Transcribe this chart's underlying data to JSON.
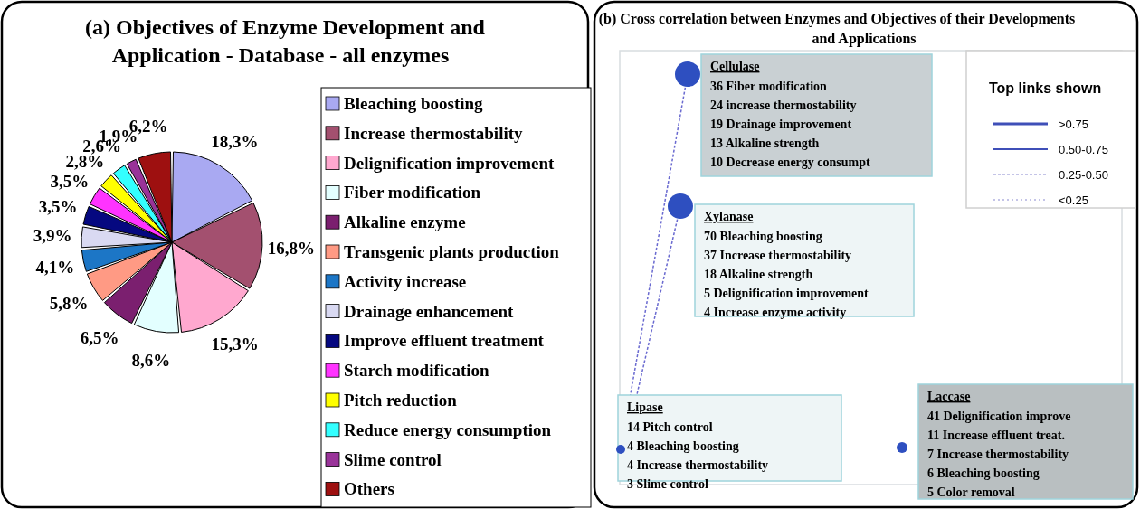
{
  "chart_data": [
    {
      "type": "pie",
      "title": "(a) Objectives of Enzyme Development and Application - Database - all enzymes",
      "categories": [
        "Bleaching boosting",
        "Increase thermostability",
        "Delignification improvement",
        "Fiber modification",
        "Alkaline enzyme",
        "Transgenic plants production",
        "Activity increase",
        "Drainage enhancement",
        "Improve effluent treatment",
        "Starch modification",
        "Pitch reduction",
        "Reduce energy consumption",
        "Slime control",
        "Others"
      ],
      "values": [
        18.3,
        16.8,
        15.3,
        8.6,
        6.5,
        5.8,
        4.1,
        3.9,
        3.5,
        3.5,
        2.8,
        2.6,
        1.9,
        6.2
      ],
      "value_labels": [
        "18,3%",
        "16,8%",
        "15,3%",
        "8,6%",
        "6,5%",
        "5,8%",
        "4,1%",
        "3,9%",
        "3,5%",
        "3,5%",
        "2,8%",
        "2,6%",
        "1,9%",
        "6,2%"
      ],
      "colors": [
        "#a9a9f2",
        "#a3506f",
        "#ffa8cf",
        "#e3ffff",
        "#7b1f6f",
        "#ff9a84",
        "#1c76c6",
        "#d9d9f2",
        "#050880",
        "#ff33ff",
        "#ffff00",
        "#33ffff",
        "#993399",
        "#9e1010"
      ],
      "legend": "right"
    },
    {
      "type": "other",
      "title": "(b) Cross correlation between Enzymes and Objectives of their Developments and Applications",
      "categories": [
        "Cellulase",
        "Xylanase",
        "Lipase",
        "Laccase"
      ],
      "annotations": [
        "36 Fiber modification",
        "24 increase thermostability",
        "19 Drainage improvement",
        "13 Alkaline strength",
        "10 Decrease energy consumpt",
        "70 Bleaching boosting",
        "37 Increase thermostability",
        "18 Alkaline strength",
        "5 Delignification improvement",
        "4 Increase enzyme activity",
        "14 Pitch control",
        "4 Bleaching boosting",
        "4 Increase thermostability",
        "3 Slime control",
        "41 Delignification improve",
        "11 Increase effluent treat.",
        "7 Increase thermostability",
        "6 Bleaching boosting",
        "5 Color removal",
        ">0.75",
        "0.50-0.75",
        "0.25-0.50",
        "<0.25"
      ],
      "legend_title": "Top links shown"
    }
  ]
}
